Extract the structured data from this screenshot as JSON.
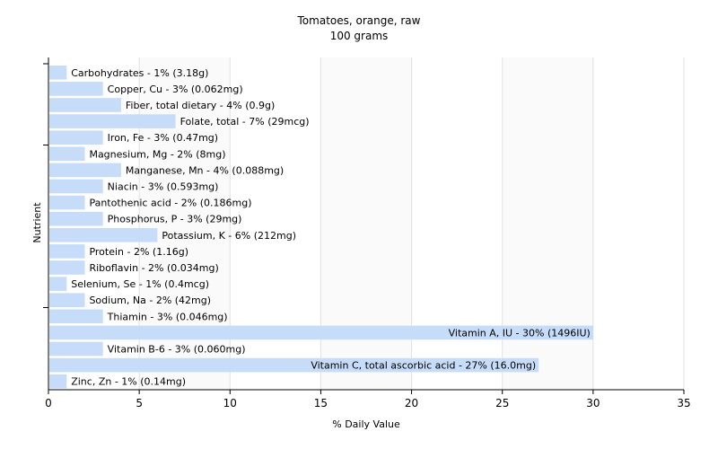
{
  "chart_data": {
    "type": "bar",
    "orientation": "horizontal",
    "title": "Tomatoes, orange, raw",
    "subtitle": "100 grams",
    "xlabel": "% Daily Value",
    "ylabel": "Nutrient",
    "xlim": [
      0,
      35
    ],
    "xticks": [
      0,
      5,
      10,
      15,
      20,
      25,
      30,
      35
    ],
    "grid": "vertical",
    "bar_color": "#c6dcf8",
    "categories": [
      "Carbohydrates",
      "Copper, Cu",
      "Fiber, total dietary",
      "Folate, total",
      "Iron, Fe",
      "Magnesium, Mg",
      "Manganese, Mn",
      "Niacin",
      "Pantothenic acid",
      "Phosphorus, P",
      "Potassium, K",
      "Protein",
      "Riboflavin",
      "Selenium, Se",
      "Sodium, Na",
      "Thiamin",
      "Vitamin A, IU",
      "Vitamin B-6",
      "Vitamin C, total ascorbic acid",
      "Zinc, Zn"
    ],
    "values": [
      1,
      3,
      4,
      7,
      3,
      2,
      4,
      3,
      2,
      3,
      6,
      2,
      2,
      1,
      2,
      3,
      30,
      3,
      27,
      1
    ],
    "labels": [
      "Carbohydrates - 1% (3.18g)",
      "Copper, Cu - 3% (0.062mg)",
      "Fiber, total dietary - 4% (0.9g)",
      "Folate, total - 7% (29mcg)",
      "Iron, Fe - 3% (0.47mg)",
      "Magnesium, Mg - 2% (8mg)",
      "Manganese, Mn - 4% (0.088mg)",
      "Niacin - 3% (0.593mg)",
      "Pantothenic acid - 2% (0.186mg)",
      "Phosphorus, P - 3% (29mg)",
      "Potassium, K - 6% (212mg)",
      "Protein - 2% (1.16g)",
      "Riboflavin - 2% (0.034mg)",
      "Selenium, Se - 1% (0.4mcg)",
      "Sodium, Na - 2% (42mg)",
      "Thiamin - 3% (0.046mg)",
      "Vitamin A, IU - 30% (1496IU)",
      "Vitamin B-6 - 3% (0.060mg)",
      "Vitamin C, total ascorbic acid - 27% (16.0mg)",
      "Zinc, Zn - 1% (0.14mg)"
    ]
  }
}
